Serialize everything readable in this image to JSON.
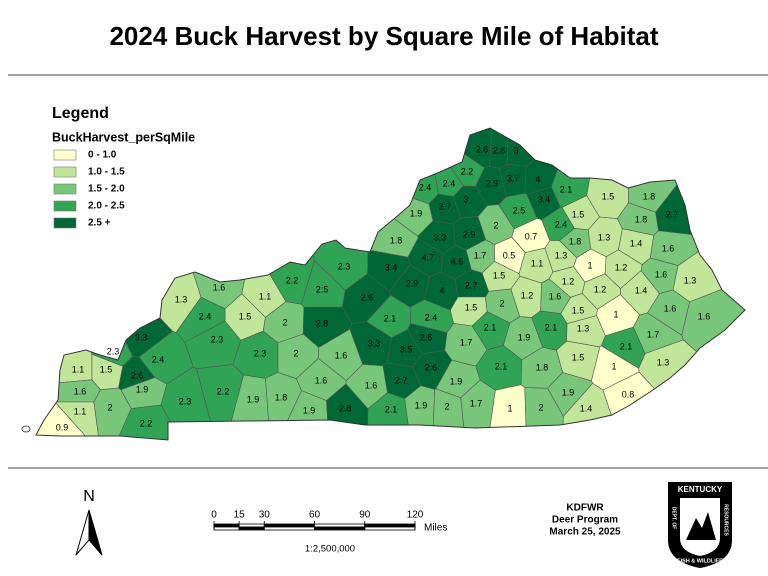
{
  "title": "2024 Buck Harvest by Square Mile of Habitat",
  "legend": {
    "title": "Legend",
    "field": "BuckHarvest_perSqMile",
    "classes": [
      {
        "label": "0 - 1.0",
        "min": 0,
        "color": "#ffffcc"
      },
      {
        "label": "1.0 - 1.5",
        "min": 1.0,
        "color": "#c2e699"
      },
      {
        "label": "1.5 - 2.0",
        "min": 1.5,
        "color": "#78c679"
      },
      {
        "label": "2.0 - 2.5",
        "min": 2.0,
        "color": "#31a354"
      },
      {
        "label": "2.5 +",
        "min": 2.5,
        "color": "#006837"
      }
    ]
  },
  "counties": [
    1.1,
    1.5,
    1.6,
    1.1,
    0.9,
    2,
    2.2,
    1.9,
    2.6,
    3.3,
    2.3,
    2.4,
    2.3,
    1.3,
    1.6,
    1.1,
    1.5,
    2.4,
    2,
    2.8,
    2.3,
    2.3,
    2.2,
    1.9,
    1.8,
    2,
    1.6,
    1.6,
    1.9,
    2.8,
    1.6,
    2.1,
    1.9,
    2.7,
    2.6,
    3.5,
    3.3,
    2.6,
    2.1,
    2.4,
    2.6,
    2.9,
    4,
    3.4,
    4.7,
    4.6,
    1.7,
    2.7,
    1.5,
    2,
    2.1,
    1.7,
    1.9,
    1.7,
    2,
    2.1,
    1.9,
    1,
    2,
    1.8,
    2.1,
    1.9,
    1.4,
    1.5,
    1.3,
    1.5,
    1.6,
    1.2,
    1.5,
    0.5,
    1.1,
    1.3,
    1.2,
    1,
    1.2,
    1,
    1,
    0.8,
    2.1,
    1.7,
    1.3,
    1.2,
    1.4,
    1.4,
    1.3,
    1.8,
    2.4,
    1.5,
    1.5,
    1.8,
    1.8,
    2.7,
    1.6,
    1.6,
    1.3,
    1.6,
    1.6,
    2.1,
    3.4,
    2.5,
    4,
    3.7,
    2.9,
    3,
    2,
    0.7,
    2.6,
    2.6,
    3,
    2.2,
    2.4,
    2.4,
    2.7,
    1.9,
    1.8,
    3.3,
    2.9,
    2.3,
    2.5,
    2.2
  ],
  "north_arrow": "N",
  "scale_bar": {
    "ticks": [
      0,
      15,
      30,
      60,
      90,
      120
    ],
    "unit": "Miles",
    "ratio": "1:2,500,000"
  },
  "credits": [
    "KDFWR",
    "Deer Program",
    "March 25, 2025"
  ],
  "logo": {
    "top": "KENTUCKY",
    "left": "DEPT. OF",
    "bottom": "FISH & WILDLIFE",
    "right": "RESOURCES"
  }
}
